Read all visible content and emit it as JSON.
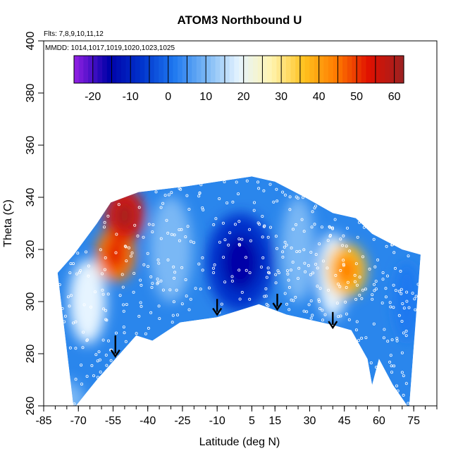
{
  "chart_data": {
    "type": "heatmap",
    "title": "ATOM3 Northbound U",
    "annotations": {
      "flights": "Flts: 7,8,9,10,11,12",
      "dates": "MMDD: 1014,1017,1019,1020,1023,1025"
    },
    "xlabel": "Latitude (deg N)",
    "ylabel": "Theta (C)",
    "xlim": [
      -85,
      85
    ],
    "ylim": [
      260,
      400
    ],
    "x_ticks": [
      -85,
      -70,
      -55,
      -40,
      -25,
      -10,
      5,
      15,
      30,
      45,
      60,
      75
    ],
    "y_ticks": [
      260,
      280,
      300,
      320,
      340,
      360,
      380,
      400
    ],
    "colorbar": {
      "min": -25,
      "max": 62.5,
      "ticks": [
        -20,
        -10,
        0,
        10,
        20,
        30,
        40,
        50,
        60
      ],
      "colors": [
        "#8a1ee0",
        "#0000a8",
        "#0033cc",
        "#1e78f0",
        "#7ab8f5",
        "#e6f4ff",
        "#fff4b0",
        "#ffc21e",
        "#ff7a00",
        "#e01000",
        "#a02020"
      ]
    },
    "coverage": {
      "lower_boundary": [
        [
          -72,
          259
        ],
        [
          -62,
          270
        ],
        [
          -52,
          280
        ],
        [
          -45,
          287
        ],
        [
          -38,
          285
        ],
        [
          -26,
          292
        ],
        [
          -10,
          294
        ],
        [
          8,
          299
        ],
        [
          20,
          295
        ],
        [
          40,
          291
        ],
        [
          48,
          289
        ],
        [
          55,
          278
        ],
        [
          57,
          268
        ],
        [
          60,
          278
        ],
        [
          66,
          268
        ],
        [
          73,
          259
        ]
      ],
      "upper_boundary": [
        [
          -79,
          311
        ],
        [
          -72,
          318
        ],
        [
          -62,
          330
        ],
        [
          -56,
          338
        ],
        [
          -44,
          342
        ],
        [
          -25,
          344
        ],
        [
          -10,
          346
        ],
        [
          5,
          348
        ],
        [
          15,
          346
        ],
        [
          28,
          340
        ],
        [
          40,
          334
        ],
        [
          50,
          332
        ],
        [
          57,
          326
        ],
        [
          70,
          320
        ],
        [
          78,
          318
        ]
      ]
    },
    "regions": [
      {
        "label": "westerly_jet_south",
        "lat": -54,
        "theta": 318,
        "value": 45
      },
      {
        "label": "jet_upper_south",
        "lat": -50,
        "theta": 333,
        "value": 50
      },
      {
        "label": "tropics_easterly",
        "lat": 0,
        "theta": 315,
        "value": -10
      },
      {
        "label": "westerly_jet_north",
        "lat": 46,
        "theta": 312,
        "value": 35
      }
    ],
    "arrows_at_lat": [
      -54,
      -10,
      16,
      40
    ],
    "arrow_tip_theta": [
      279,
      295,
      297,
      290
    ],
    "arrow_tail_theta": [
      287,
      301,
      303,
      296
    ]
  }
}
